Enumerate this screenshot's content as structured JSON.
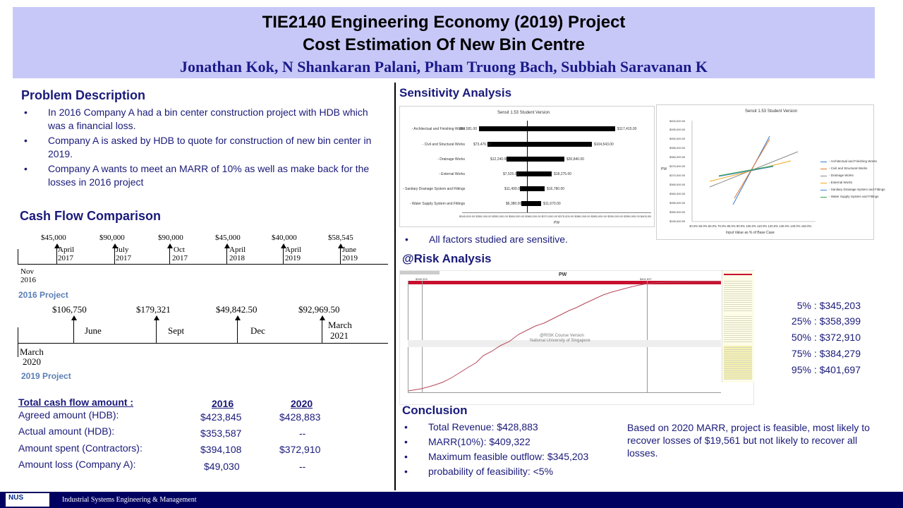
{
  "header": {
    "title_line1": "TIE2140 Engineering Economy (2019) Project",
    "title_line2": "Cost Estimation Of New Bin Centre",
    "authors": "Jonathan Kok, N Shankaran Palani, Pham Truong Bach, Subbiah Saravanan K"
  },
  "problem": {
    "heading": "Problem Description",
    "bullets": [
      "In 2016 Company A had a bin center construction project with HDB which was a financial loss.",
      "Company A is asked by HDB to quote for construction of new bin center in 2019.",
      "Company A wants to meet an MARR of 10% as well as make back for the losses in 2016 project"
    ]
  },
  "cashflow": {
    "heading": "Cash Flow Comparison",
    "t2016": {
      "amounts": [
        "$45,000",
        "$90,000",
        "$90,000",
        "$45,000",
        "$40,000",
        "$58,545"
      ],
      "dates": [
        [
          "April",
          "2017"
        ],
        [
          "July",
          "2017"
        ],
        [
          "Oct",
          "2017"
        ],
        [
          "April",
          "2018"
        ],
        [
          "April",
          "2019"
        ],
        [
          "June",
          "2019"
        ]
      ],
      "start": [
        "Nov",
        "2016"
      ],
      "label": "2016 Project"
    },
    "t2019": {
      "amounts": [
        "$106,750",
        "$179,321",
        "$49,842.50",
        "$92,969.50"
      ],
      "months": [
        "June",
        "Sept",
        "Dec"
      ],
      "end": [
        "March",
        "2021"
      ],
      "start": [
        "March",
        "2020"
      ],
      "label": "2019 Project"
    }
  },
  "cftable": {
    "heading": "Total cash flow amount :",
    "col1": "2016",
    "col2": "2020",
    "rows": [
      {
        "label": "Agreed amount (HDB):",
        "v1": "$423,845",
        "v2": "$428,883"
      },
      {
        "label": "Actual amount (HDB):",
        "v1": "$353,587",
        "v2": "--"
      },
      {
        "label": "Amount spent (Contractors):",
        "v1": "$394,108",
        "v2": "$372,910"
      },
      {
        "label": "Amount loss (Company A):",
        "v1": "$49,030",
        "v2": "--"
      }
    ]
  },
  "sensitivity": {
    "heading": "Sensitivity Analysis",
    "note": "All factors studied are sensitive.",
    "tornado_title": "Sensit 1.53 Student Version",
    "tornado_xlabel": "PW",
    "tornado_rows": [
      {
        "label": "- Architectual and Finishing Works",
        "low": "$80,581.00",
        "high": "$117,415.00"
      },
      {
        "label": "- Civil and Structural Works",
        "low": "$73,476.00",
        "high": "$104,543.00"
      },
      {
        "label": "- Drainage Works",
        "low": "$12,240.00",
        "high": "$30,840.00"
      },
      {
        "label": "- External Works",
        "low": "$7,525.00",
        "high": "$18,275.00"
      },
      {
        "label": "- Sanitary Drainage System and Fittings",
        "low": "$11,490.00",
        "high": "$16,780.00"
      },
      {
        "label": "- Water Supply System and Fittings",
        "low": "$6,380.00",
        "high": "$11,670.00"
      }
    ],
    "tornado_axis": "$345,000.00 $350,000.00 $355,000.00 $360,000.00 $365,000.00 $370,000.00 $375,000.00 $380,000.00 $385,000.00 $390,000.00 $395,000.00 $400,000.00",
    "spider_title": "Sensit 1.53 Student Version",
    "spider_ylabel": "PW",
    "spider_xlabel": "Input Value as % of Base Case",
    "spider_yticks": [
      "$400,000.00",
      "$395,000.00",
      "$390,000.00",
      "$385,000.00",
      "$380,000.00",
      "$375,000.00",
      "$370,000.00",
      "$365,000.00",
      "$360,000.00",
      "$355,000.00",
      "$350,000.00",
      "$345,000.00"
    ],
    "spider_xticks": "40.0% 50.0% 60.0% 70.0% 80.0% 90.0% 100.0% 110.0% 120.0% 130.0% 140.0% 150.0%",
    "spider_legend": [
      {
        "name": "- Architectual and Finishing Works",
        "color": "#3b78c9"
      },
      {
        "name": "- Civil and Structural Works",
        "color": "#e0762e"
      },
      {
        "name": "- Drainage Works",
        "color": "#8a8a8a"
      },
      {
        "name": "- External Works",
        "color": "#f0a81c"
      },
      {
        "name": "- Sanitary Drainage System and Fittings",
        "color": "#3e86c8"
      },
      {
        "name": "- Water Supply System and Fittings",
        "color": "#3aa04a"
      }
    ]
  },
  "risk": {
    "heading": "@Risk Analysis",
    "chart_title": "PW",
    "watermark1": "@RISK Course Version",
    "watermark2": "National University of Singapore",
    "left_marker": "$345,203",
    "right_marker": "$401,697",
    "percentiles": [
      "5% : $345,203",
      "25% : $358,399",
      "50% : $372,910",
      "75% : $384,279",
      "95% : $401,697"
    ]
  },
  "conclusion": {
    "heading": "Conclusion",
    "bullets": [
      "Total Revenue:  $428,883",
      "MARR(10%): $409,322",
      "Maximum feasible outflow: $345,203",
      "probability of feasibility: <5%"
    ],
    "text": "Based on 2020 MARR, project is feasible, most likely to recover losses of $19,561 but not likely to recover all losses."
  },
  "footer": {
    "logo": "NUS",
    "name": "Industrial Systems Engineering & Management"
  }
}
